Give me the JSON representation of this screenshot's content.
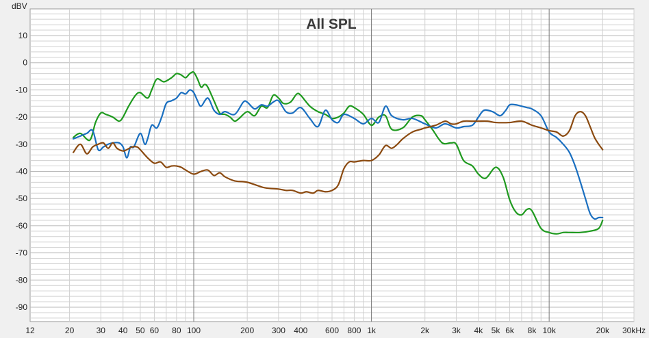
{
  "chart_data": {
    "type": "line",
    "title": "All SPL",
    "ylabel": "dBV",
    "xlabel": "",
    "xscale": "log",
    "xlim": [
      12,
      30000
    ],
    "ylim": [
      -96,
      20
    ],
    "grid": true,
    "legend": "none",
    "colors": {
      "background": "#f0f0f0",
      "plot_background": "#ffffff",
      "grid_minor": "#d0d0d0",
      "grid_major": "#7a7a7a"
    },
    "y_ticks": [
      10,
      0,
      -10,
      -20,
      -30,
      -40,
      -50,
      -60,
      -70,
      -80,
      -90
    ],
    "y_tick_labels": [
      "10",
      "0",
      "-10",
      "-20",
      "-30",
      "-40",
      "-50",
      "-60",
      "-70",
      "-80",
      "-90"
    ],
    "x_ticks": [
      12,
      20,
      30,
      40,
      50,
      60,
      80,
      100,
      200,
      300,
      400,
      600,
      800,
      1000,
      2000,
      3000,
      4000,
      5000,
      6000,
      8000,
      10000,
      20000,
      30000
    ],
    "x_tick_labels": [
      "12",
      "20",
      "30",
      "40",
      "50",
      "60",
      "80",
      "100",
      "200",
      "300",
      "400",
      "600",
      "800",
      "1k",
      "2k",
      "3k",
      "4k",
      "5k",
      "6k",
      "8k",
      "10k",
      "20k",
      "30kHz"
    ],
    "series": [
      {
        "color": "#1f9a1f",
        "x": [
          21,
          23,
          26,
          28,
          30,
          32,
          35,
          38,
          40,
          43,
          47,
          50,
          55,
          58,
          62,
          68,
          75,
          80,
          85,
          90,
          95,
          100,
          105,
          110,
          115,
          120,
          130,
          140,
          150,
          160,
          170,
          180,
          200,
          220,
          240,
          260,
          280,
          300,
          320,
          350,
          380,
          400,
          450,
          500,
          550,
          600,
          650,
          700,
          750,
          800,
          900,
          1000,
          1100,
          1200,
          1300,
          1500,
          1700,
          1900,
          2000,
          2200,
          2500,
          2800,
          3000,
          3300,
          3700,
          4000,
          4400,
          5000,
          5500,
          6000,
          6500,
          7000,
          7500,
          8000,
          9000,
          10000,
          11000,
          12000,
          13000,
          15000,
          17000,
          19000,
          20000
        ],
        "y": [
          -27.5,
          -26,
          -28.5,
          -22,
          -18.5,
          -19,
          -20,
          -21.5,
          -20,
          -16,
          -12,
          -11,
          -13,
          -10,
          -6,
          -7,
          -5.5,
          -4,
          -4.5,
          -5.5,
          -4,
          -3.5,
          -6,
          -9,
          -8,
          -9,
          -14,
          -18.5,
          -19,
          -20,
          -21.5,
          -20.5,
          -18,
          -19.5,
          -16,
          -16.5,
          -12,
          -13,
          -15,
          -14.5,
          -11.5,
          -12,
          -16,
          -18,
          -19,
          -20.5,
          -20,
          -18.5,
          -16,
          -16.5,
          -19,
          -23,
          -20,
          -19.5,
          -24.5,
          -24,
          -20,
          -19.5,
          -21,
          -24.5,
          -29.5,
          -29.5,
          -30,
          -36,
          -38,
          -41,
          -42.5,
          -38.5,
          -42,
          -50.5,
          -55,
          -56,
          -54,
          -54.5,
          -61,
          -62.5,
          -63,
          -62.5,
          -62.5,
          -62.5,
          -62,
          -61,
          -58
        ]
      },
      {
        "color": "#1a6fc0",
        "x": [
          21,
          23,
          25,
          27,
          29,
          31,
          33,
          35,
          38,
          40,
          42,
          44,
          46,
          50,
          53,
          55,
          58,
          62,
          66,
          70,
          75,
          80,
          85,
          90,
          95,
          100,
          105,
          110,
          120,
          130,
          140,
          150,
          170,
          190,
          200,
          220,
          240,
          260,
          280,
          300,
          330,
          360,
          400,
          450,
          500,
          550,
          600,
          650,
          700,
          800,
          900,
          1000,
          1100,
          1200,
          1300,
          1500,
          1700,
          2000,
          2300,
          2600,
          3000,
          3300,
          3700,
          4000,
          4300,
          4800,
          5300,
          5700,
          6000,
          6500,
          7000,
          7500,
          8000,
          9000,
          10000,
          11000,
          12000,
          13000,
          14000,
          15000,
          16000,
          17000,
          18000,
          19000,
          20000
        ],
        "y": [
          -28,
          -27,
          -26,
          -25,
          -32,
          -31,
          -30,
          -29.5,
          -29.5,
          -31,
          -35,
          -31,
          -31,
          -26,
          -30,
          -28,
          -23,
          -24,
          -20,
          -15,
          -14,
          -13,
          -11,
          -11.5,
          -10,
          -11,
          -14,
          -16,
          -13,
          -17.5,
          -19,
          -18,
          -19,
          -14.5,
          -14.5,
          -17,
          -15.5,
          -16,
          -14.5,
          -14,
          -18,
          -18.5,
          -16.5,
          -20.5,
          -23.5,
          -17.5,
          -21,
          -22,
          -19,
          -20.5,
          -22.5,
          -20.5,
          -22,
          -16,
          -19.5,
          -21,
          -20.5,
          -22.5,
          -24,
          -22.5,
          -24,
          -23.5,
          -23,
          -20,
          -17.5,
          -18,
          -19.5,
          -17.5,
          -15.5,
          -15.5,
          -16,
          -16.5,
          -17,
          -19.5,
          -25.5,
          -27.5,
          -30,
          -33,
          -38,
          -44,
          -50,
          -55.5,
          -57.5,
          -57,
          -57
        ]
      },
      {
        "color": "#8b4a10",
        "x": [
          21,
          23,
          25,
          27,
          29,
          31,
          33,
          35,
          37,
          40,
          42,
          45,
          48,
          50,
          55,
          60,
          65,
          70,
          75,
          80,
          85,
          90,
          100,
          110,
          120,
          130,
          140,
          150,
          170,
          200,
          250,
          300,
          330,
          360,
          400,
          430,
          470,
          500,
          550,
          600,
          650,
          700,
          750,
          800,
          900,
          1000,
          1100,
          1200,
          1300,
          1400,
          1500,
          1700,
          1900,
          2000,
          2300,
          2600,
          2800,
          3000,
          3300,
          3700,
          4000,
          4500,
          5000,
          6000,
          7000,
          8000,
          9000,
          10000,
          11000,
          12000,
          13000,
          14000,
          15000,
          16000,
          17000,
          18000,
          19000,
          20000
        ],
        "y": [
          -33,
          -30,
          -33.5,
          -31,
          -30,
          -29.5,
          -31.5,
          -29.5,
          -31.5,
          -32.5,
          -32,
          -31,
          -31,
          -32,
          -35,
          -37,
          -36.5,
          -38.5,
          -38,
          -38,
          -38.5,
          -39.5,
          -41,
          -40,
          -39.5,
          -41.5,
          -40.5,
          -42,
          -43.5,
          -44,
          -46,
          -46.5,
          -47,
          -47,
          -48,
          -47.5,
          -48,
          -47,
          -47.5,
          -47,
          -45,
          -39,
          -36.5,
          -36.5,
          -36,
          -36,
          -34,
          -30.5,
          -31.5,
          -30,
          -28,
          -25.5,
          -24.5,
          -24,
          -23,
          -21.5,
          -22.5,
          -22.5,
          -21.5,
          -21.5,
          -21.5,
          -21.5,
          -22,
          -22,
          -21.5,
          -23,
          -24,
          -25,
          -25.5,
          -27,
          -25,
          -19.5,
          -18,
          -19.5,
          -23.5,
          -27.5,
          -30,
          -32
        ]
      }
    ]
  }
}
